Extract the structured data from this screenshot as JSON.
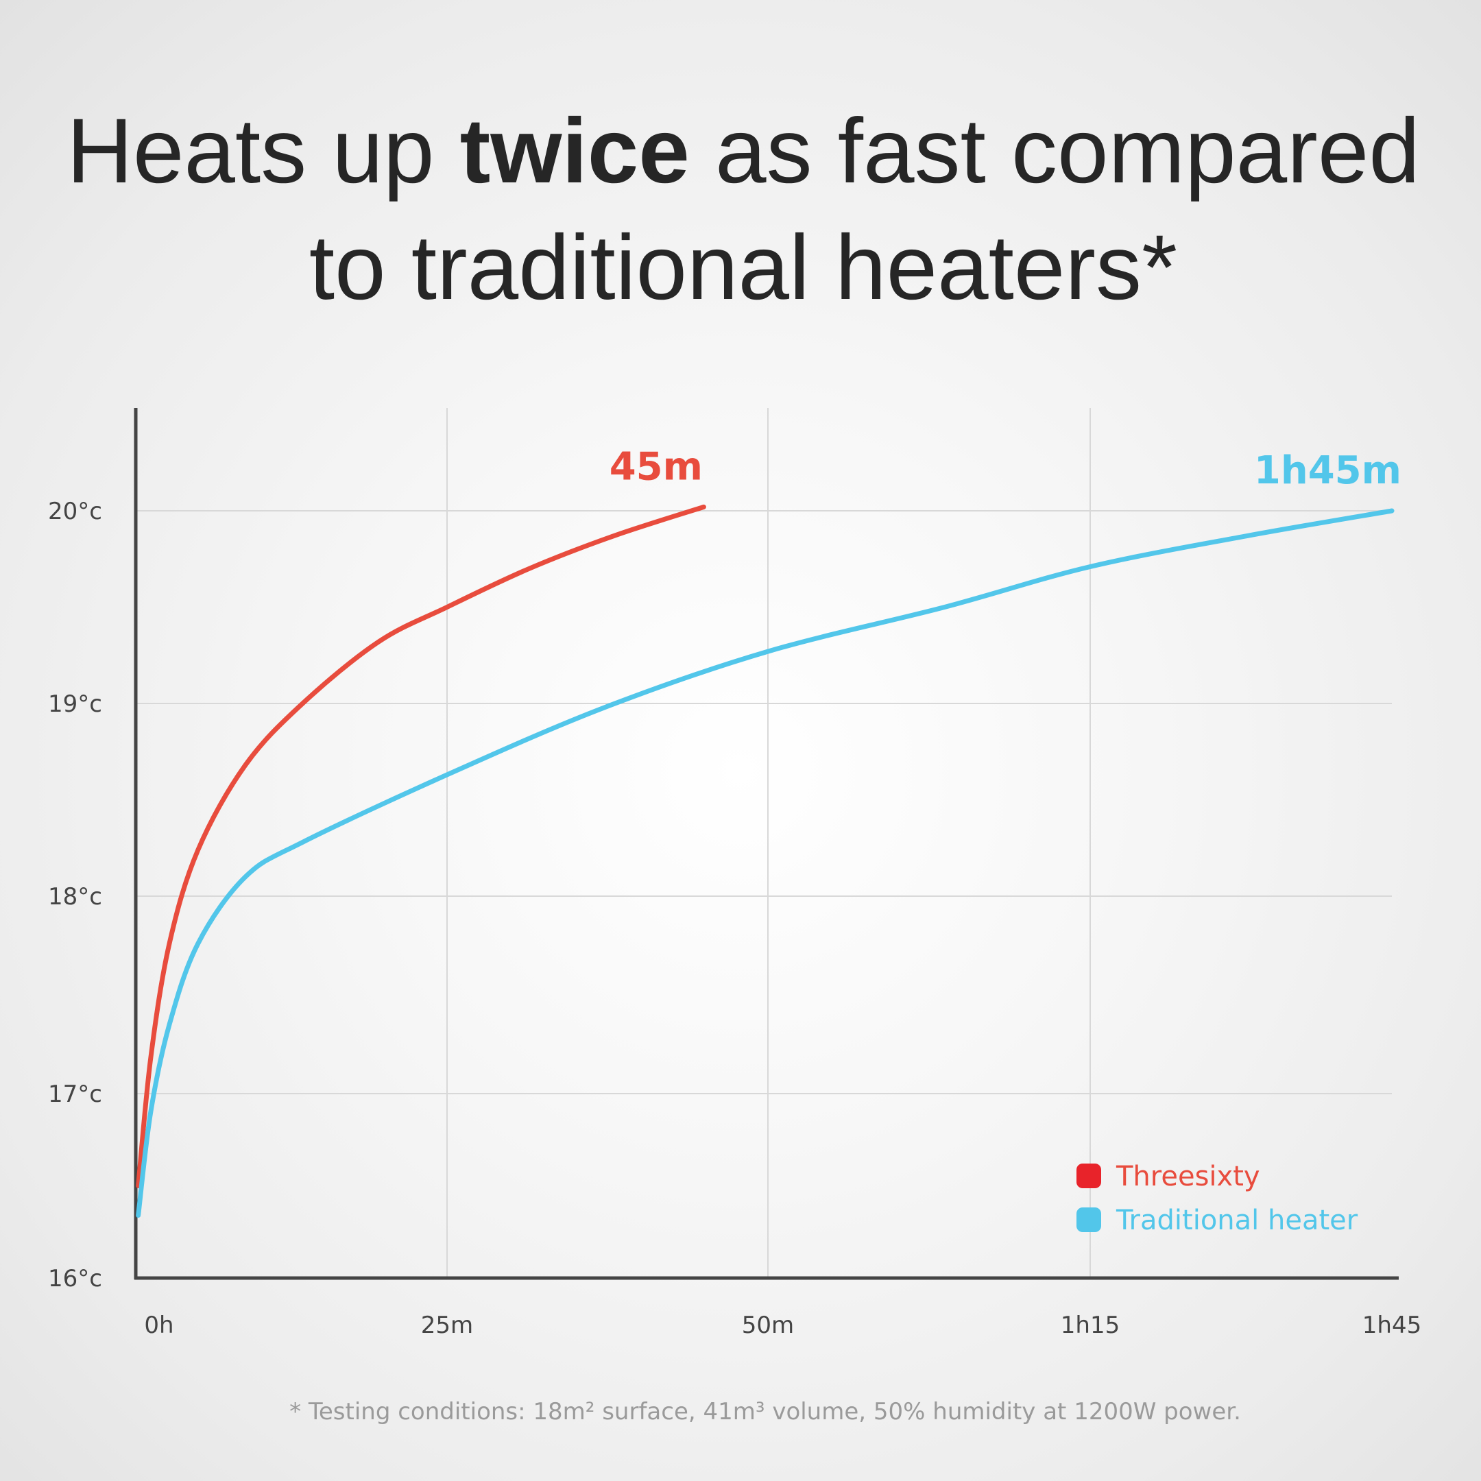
{
  "chart_data": {
    "type": "line",
    "title": {
      "part1": "Heats up ",
      "bold": "twice",
      "part2": " as fast compared",
      "line2": "to traditional heaters*"
    },
    "footnote": "* Testing conditions: 18m² surface, 41m³ volume, 50% humidity at 1200W power.",
    "x_ticks": [
      {
        "label": "0h",
        "minutes": 0
      },
      {
        "label": "25m",
        "minutes": 25
      },
      {
        "label": "50m",
        "minutes": 50
      },
      {
        "label": "1h15",
        "minutes": 75
      },
      {
        "label": "1h45",
        "minutes": 105
      }
    ],
    "y_ticks": [
      {
        "label": "16°c",
        "value": 16
      },
      {
        "label": "17°c",
        "value": 17
      },
      {
        "label": "18°c",
        "value": 18
      },
      {
        "label": "19°c",
        "value": 19
      },
      {
        "label": "20°c",
        "value": 20
      }
    ],
    "xlim": [
      0,
      105
    ],
    "ylim": [
      16,
      20.5
    ],
    "grid": true,
    "legend_placement": "bottom-right",
    "series": [
      {
        "name": "Threesixty",
        "color": "#e84c3d",
        "end_label": "45m",
        "x": [
          0.2,
          1.2,
          2.7,
          5,
          8.8,
          13.4,
          19.5,
          25,
          31.4,
          38,
          45
        ],
        "y": [
          16.5,
          17.18,
          17.76,
          18.24,
          18.68,
          19.0,
          19.32,
          19.5,
          19.7,
          19.87,
          20.02
        ]
      },
      {
        "name": "Traditional heater",
        "color": "#52c6ea",
        "end_label": "1h45m",
        "x": [
          0.2,
          1.2,
          2.7,
          5,
          8.8,
          13.4,
          25,
          37.3,
          50,
          63.7,
          75,
          90.6,
          105
        ],
        "y": [
          16.34,
          16.9,
          17.35,
          17.76,
          18.1,
          18.28,
          18.63,
          18.98,
          19.27,
          19.5,
          19.71,
          19.87,
          20.0
        ]
      }
    ]
  }
}
